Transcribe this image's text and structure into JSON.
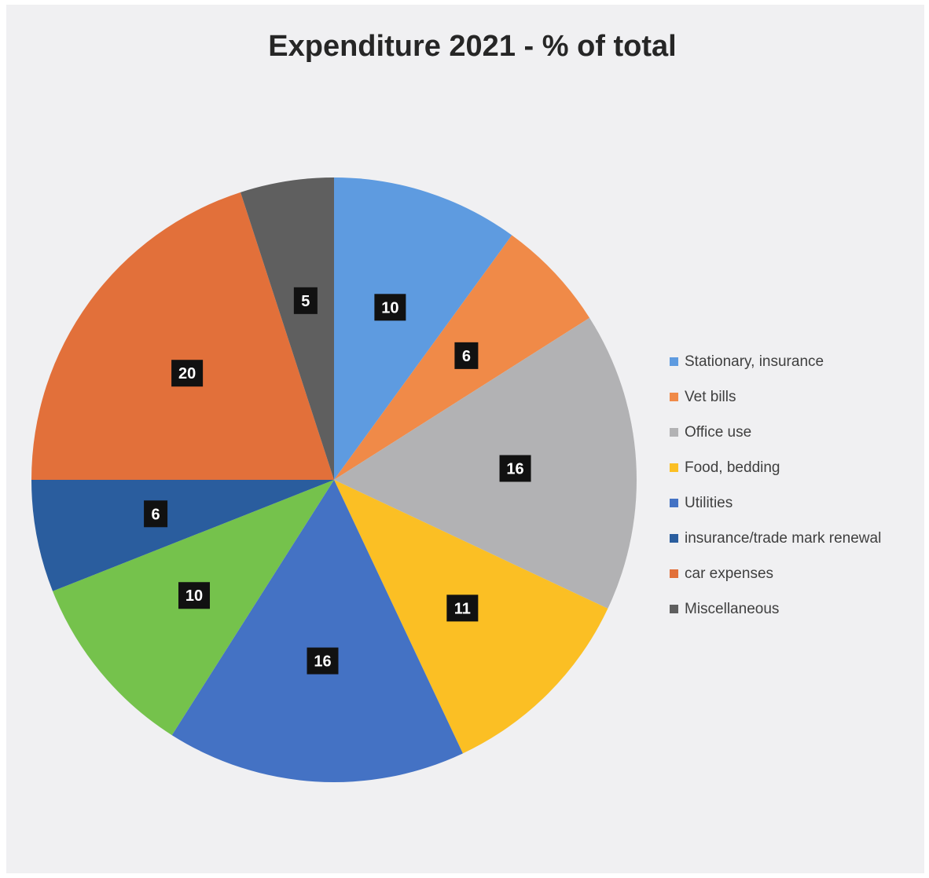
{
  "chart_data": {
    "type": "pie",
    "title": "Expenditure 2021 - % of total",
    "legend_position": "right",
    "slices": [
      {
        "label": "Stationary, insurance",
        "value": 10,
        "color": "#5e9be0"
      },
      {
        "label": "Vet bills",
        "value": 6,
        "color": "#f08a48"
      },
      {
        "label": "Office use",
        "value": 16,
        "color": "#b2b2b4"
      },
      {
        "label": "Food, bedding",
        "value": 11,
        "color": "#fbbf24"
      },
      {
        "label": "Utilities",
        "value": 16,
        "color": "#4472c4"
      },
      {
        "label": "insurance/trade mark renewal",
        "value": 6,
        "color": "#2a5d9e"
      },
      {
        "label": "car expenses",
        "value": 20,
        "color": "#e2703a"
      },
      {
        "label": "Miscellaneous",
        "value": 5,
        "color": "#5f5f5f"
      }
    ],
    "extra_slice": {
      "value": 10,
      "color": "#75c24c"
    }
  }
}
